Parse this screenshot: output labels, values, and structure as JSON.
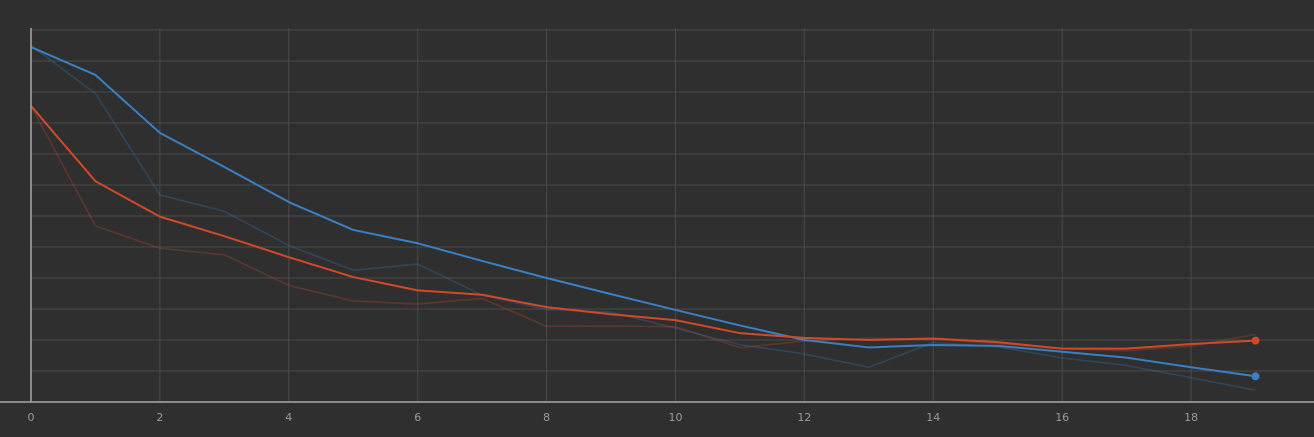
{
  "chart_data": {
    "type": "line",
    "title": "",
    "xlabel": "",
    "ylabel": "",
    "grid": true,
    "legend": "none",
    "x_ticks": [
      "0",
      "2",
      "4",
      "6",
      "8",
      "10",
      "12",
      "14",
      "16",
      "18"
    ],
    "xlim": [
      0,
      19.9
    ],
    "ylim": [
      0,
      12.4
    ],
    "x": [
      0,
      1,
      2,
      3,
      4,
      5,
      6,
      7,
      8,
      9,
      10,
      11,
      12,
      13,
      14,
      15,
      16,
      17,
      18,
      19
    ],
    "series": [
      {
        "color": "#3a7fc4",
        "values": [
          11.45,
          10.55,
          8.68,
          7.58,
          6.45,
          5.55,
          5.12,
          4.55,
          4.0,
          3.48,
          2.97,
          2.47,
          2.0,
          1.76,
          1.84,
          1.81,
          1.62,
          1.43,
          1.12,
          0.83
        ],
        "raw": [
          11.5,
          9.95,
          6.68,
          6.15,
          5.05,
          4.25,
          4.45,
          3.45,
          2.98,
          2.9,
          2.38,
          1.85,
          1.55,
          1.12,
          1.92,
          1.78,
          1.42,
          1.18,
          0.78,
          0.38
        ]
      },
      {
        "color": "#d04a2a",
        "values": [
          9.55,
          7.12,
          5.98,
          5.35,
          4.67,
          4.03,
          3.6,
          3.46,
          3.06,
          2.83,
          2.64,
          2.22,
          2.07,
          2.0,
          2.05,
          1.93,
          1.72,
          1.72,
          1.87,
          1.98
        ],
        "raw": [
          9.55,
          5.68,
          4.96,
          4.75,
          3.76,
          3.26,
          3.16,
          3.34,
          2.44,
          2.45,
          2.43,
          1.75,
          1.97,
          2.06,
          2.02,
          1.88,
          1.72,
          1.65,
          1.8,
          2.18
        ]
      }
    ]
  },
  "colors": {
    "background": "#2f2f2f",
    "grid": "#4a4a4a",
    "axis": "#a8a8a8",
    "tick_label": "#9a9a9a"
  }
}
